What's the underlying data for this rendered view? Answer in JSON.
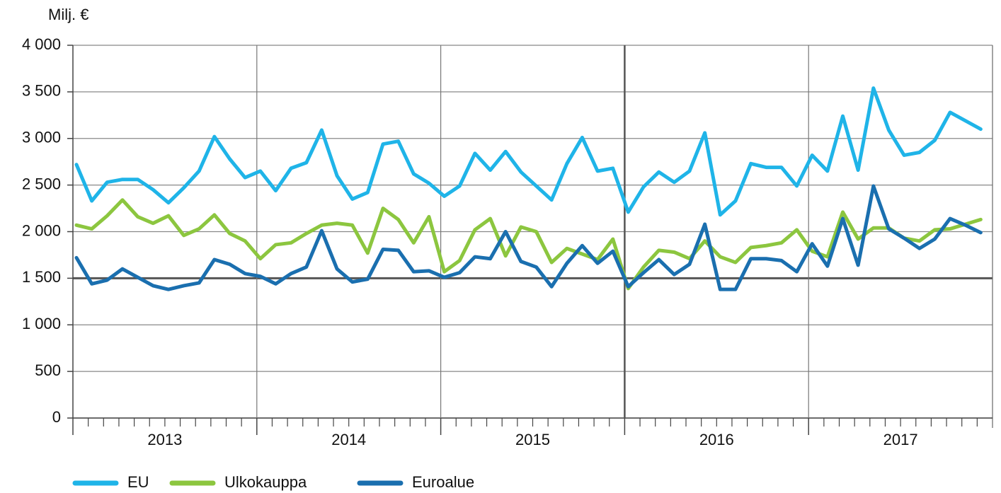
{
  "chart_data": {
    "type": "line",
    "y_label": "Milj. €",
    "year_labels": [
      "2013",
      "2014",
      "2015",
      "2016",
      "2017"
    ],
    "ylim": [
      0,
      4000
    ],
    "yticks": [
      {
        "value": 0,
        "label": "0"
      },
      {
        "value": 500,
        "label": "500"
      },
      {
        "value": 1000,
        "label": "1 000"
      },
      {
        "value": 1500,
        "label": "1 500"
      },
      {
        "value": 2000,
        "label": "2 000"
      },
      {
        "value": 2500,
        "label": "2 500"
      },
      {
        "value": 3000,
        "label": "3 000"
      },
      {
        "value": 3500,
        "label": "3 500"
      },
      {
        "value": 4000,
        "label": "4 000"
      }
    ],
    "grid": true,
    "legend": "bottom",
    "series": [
      {
        "name": "EU",
        "color": "#1fb4e8",
        "values": [
          2720,
          2330,
          2530,
          2560,
          2560,
          2450,
          2310,
          2470,
          2650,
          3020,
          2780,
          2580,
          2650,
          2440,
          2680,
          2740,
          3090,
          2600,
          2350,
          2420,
          2940,
          2970,
          2620,
          2520,
          2380,
          2490,
          2840,
          2660,
          2860,
          2640,
          2490,
          2340,
          2730,
          3010,
          2650,
          2680,
          2210,
          2480,
          2640,
          2530,
          2650,
          3060,
          2180,
          2330,
          2730,
          2690,
          2690,
          2490,
          2820,
          2650,
          3240,
          2660,
          3540,
          3090,
          2820,
          2850,
          2980,
          3280,
          3190,
          3100
        ]
      },
      {
        "name": "Ulkokauppa",
        "color": "#8cc63f",
        "values": [
          2070,
          2030,
          2170,
          2340,
          2160,
          2090,
          2170,
          1960,
          2030,
          2180,
          1980,
          1900,
          1710,
          1860,
          1880,
          1980,
          2070,
          2090,
          2070,
          1770,
          2250,
          2130,
          1880,
          2160,
          1570,
          1690,
          2020,
          2140,
          1740,
          2050,
          2000,
          1670,
          1820,
          1760,
          1700,
          1920,
          1390,
          1620,
          1800,
          1780,
          1710,
          1900,
          1730,
          1670,
          1830,
          1850,
          1880,
          2020,
          1790,
          1730,
          2210,
          1920,
          2040,
          2040,
          1930,
          1900,
          2020,
          2030,
          2080,
          2130
        ]
      },
      {
        "name": "Euroalue",
        "color": "#1a6faf",
        "values": [
          1720,
          1440,
          1480,
          1600,
          1510,
          1420,
          1380,
          1420,
          1450,
          1700,
          1650,
          1550,
          1520,
          1440,
          1550,
          1620,
          2010,
          1600,
          1460,
          1490,
          1810,
          1800,
          1570,
          1580,
          1510,
          1560,
          1730,
          1710,
          2000,
          1680,
          1620,
          1410,
          1660,
          1850,
          1660,
          1790,
          1410,
          1560,
          1700,
          1540,
          1650,
          2080,
          1380,
          1380,
          1710,
          1710,
          1690,
          1570,
          1870,
          1630,
          2140,
          1640,
          2490,
          2030,
          1930,
          1820,
          1920,
          2140,
          2070,
          1990
        ]
      }
    ]
  }
}
